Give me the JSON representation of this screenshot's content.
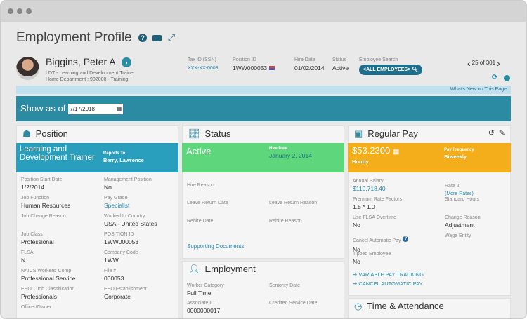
{
  "page": {
    "title": "Employment Profile"
  },
  "employee": {
    "name": "Biggins, Peter A",
    "job": "LDT - Learning and Development Trainer",
    "department": "Home Department : 902000 - Training"
  },
  "summary": [
    {
      "label": "Tax ID (SSN)",
      "value": "XXX-XX-0003"
    },
    {
      "label": "Position ID",
      "value": "1WW000053"
    },
    {
      "label": "Hire Date",
      "value": "01/02/2014"
    },
    {
      "label": "Status",
      "value": "Active"
    }
  ],
  "search": {
    "label": "Employee Search",
    "value": "<ALL EMPLOYEES>"
  },
  "pager": {
    "text": "25 of 301"
  },
  "whats_new": "What's New on This Page",
  "show_as_of": {
    "label": "Show as of",
    "value": "7/17/2018"
  },
  "position": {
    "title": "Position",
    "banner_title": "Learning and Development Trainer",
    "reports_to_label": "Reports To",
    "reports_to": "Berry, Lawrence",
    "fields": [
      {
        "label": "Position Start Date",
        "value": "1/2/2014"
      },
      {
        "label": "Management Position",
        "value": "No"
      },
      {
        "label": "Job Function",
        "value": "Human Resources"
      },
      {
        "label": "Pay Grade",
        "value": "Specialist"
      },
      {
        "label": "Job Change Reason",
        "value": ""
      },
      {
        "label": "Worked In Country",
        "value": "USA - United States"
      },
      {
        "label": "Job Class",
        "value": "Professional"
      },
      {
        "label": "POSITION ID",
        "value": "1WW000053"
      },
      {
        "label": "FLSA",
        "value": "N"
      },
      {
        "label": "Company Code",
        "value": "1WW"
      },
      {
        "label": "NAICS Workers' Comp",
        "value": "Professional Service"
      },
      {
        "label": "File #",
        "value": "000053"
      },
      {
        "label": "EEOC Job Classification",
        "value": "Professionals"
      },
      {
        "label": "EEO Establishment",
        "value": "Corporate"
      },
      {
        "label": "Officer/Owner",
        "value": ""
      }
    ]
  },
  "status": {
    "title": "Status",
    "banner_title": "Active",
    "hire_label": "Hire Date",
    "hire_value": "January 2, 2014",
    "fields": [
      {
        "label": "Hire Reason"
      },
      {
        "label": "Leave Return Date"
      },
      {
        "label": "Leave Return Reason"
      },
      {
        "label": "Rehire Date"
      },
      {
        "label": "Rehire Reason"
      }
    ],
    "link": "Supporting Documents"
  },
  "employment": {
    "title": "Employment",
    "fields": [
      {
        "label": "Worker Category",
        "value": "Full Time"
      },
      {
        "label": "Seniority Date",
        "value": ""
      },
      {
        "label": "Associate ID",
        "value": "0000000017"
      },
      {
        "label": "Credited Service Date",
        "value": ""
      }
    ]
  },
  "pay": {
    "title": "Regular Pay",
    "rate": "$53.2300",
    "unit": "Hourly",
    "freq_label": "Pay Frequency",
    "freq_value": "Biweekly",
    "fields": [
      {
        "label": "Annual Salary",
        "value": "$110,718.40"
      },
      {
        "label": "Rate 2",
        "value": ""
      },
      {
        "label": "Premium Rate Factors",
        "value": "1.5 * 1.0"
      },
      {
        "label": "Standard Hours",
        "value": ""
      },
      {
        "label": "Use FLSA Overtime",
        "value": "No"
      },
      {
        "label": "Change Reason",
        "value": "Adjustment"
      },
      {
        "label": "Cancel Automatic Pay",
        "value": "No"
      },
      {
        "label": "Wage Entity",
        "value": ""
      },
      {
        "label": "Tipped Employee",
        "value": "No"
      }
    ],
    "more_rates": "(More Rates)",
    "actions": [
      "VARIABLE PAY TRACKING",
      "CANCEL AUTOMATIC PAY"
    ]
  },
  "time": {
    "title": "Time & Attendance"
  },
  "colors": {
    "teal": "#2a8ba3",
    "green": "#5dd67c",
    "orange": "#f5ae1b",
    "light_blue": "#bfe0ec",
    "dark_teal": "#1f5f78"
  }
}
